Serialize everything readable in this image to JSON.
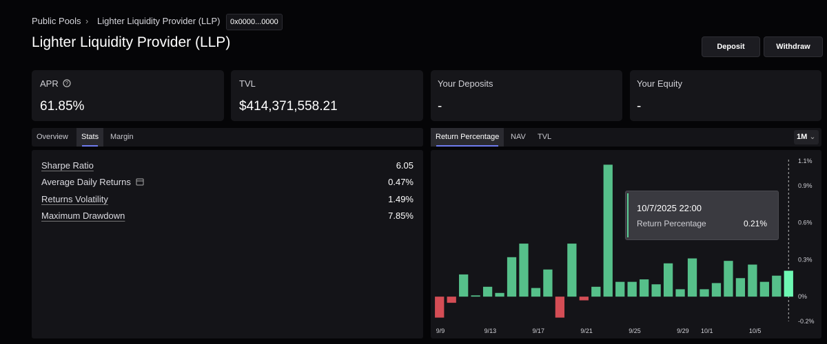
{
  "breadcrumb": {
    "parent": "Public Pools",
    "current": "Lighter Liquidity Provider (LLP)",
    "address": "0x0000...0000"
  },
  "header": {
    "title": "Lighter Liquidity Provider (LLP)",
    "buttons": [
      "Deposit",
      "Withdraw"
    ]
  },
  "cards": [
    {
      "label": "APR",
      "value": "61.85%"
    },
    {
      "label": "TVL",
      "value": "$414,371,558.21"
    },
    {
      "label": "Your Deposits",
      "value": "-"
    },
    {
      "label": "Your Equity",
      "value": "-"
    }
  ],
  "left_tabs": [
    "Overview",
    "Stats",
    "Margin"
  ],
  "stats": [
    {
      "name": "Sharpe Ratio",
      "value": "6.05"
    },
    {
      "name": "Average Daily Returns",
      "value": "0.47%"
    },
    {
      "name": "Returns Volatility",
      "value": "1.49%"
    },
    {
      "name": "Maximum Drawdown",
      "value": "7.85%"
    }
  ],
  "right_tabs": [
    "Return Percentage",
    "NAV",
    "TVL"
  ],
  "timeframe": "1M",
  "tooltip": {
    "date": "10/7/2025 22:00",
    "label": "Return Percentage",
    "value": "0.21%"
  },
  "chart_data": {
    "type": "bar",
    "categories": [
      "9/9",
      null,
      null,
      null,
      "9/13",
      null,
      null,
      null,
      "9/17",
      null,
      null,
      null,
      "9/21",
      null,
      null,
      null,
      "9/25",
      null,
      null,
      null,
      "9/29",
      null,
      "10/1",
      null,
      null,
      null,
      "10/5",
      null,
      null,
      null
    ],
    "values": [
      -0.17,
      -0.05,
      0.18,
      0.01,
      0.08,
      0.03,
      0.32,
      0.43,
      0.07,
      0.22,
      -0.17,
      0.43,
      -0.03,
      0.08,
      1.07,
      0.12,
      0.12,
      0.14,
      0.1,
      0.27,
      0.06,
      0.31,
      0.06,
      0.11,
      0.29,
      0.15,
      0.26,
      0.12,
      0.17,
      0.21
    ],
    "color": "#5ccf95",
    "negative_color": "#e5535b",
    "ylim": [
      -0.2,
      1.1
    ],
    "yticks": [
      {
        "value": -0.2,
        "label": "-0.2%"
      },
      {
        "value": 0,
        "label": "0%"
      },
      {
        "value": 0.3,
        "label": "0.3%"
      },
      {
        "value": 0.6,
        "label": "0.6%"
      },
      {
        "value": 0.9,
        "label": "0.9%"
      },
      {
        "value": 1.1,
        "label": "1.1%"
      }
    ],
    "grid": false
  }
}
